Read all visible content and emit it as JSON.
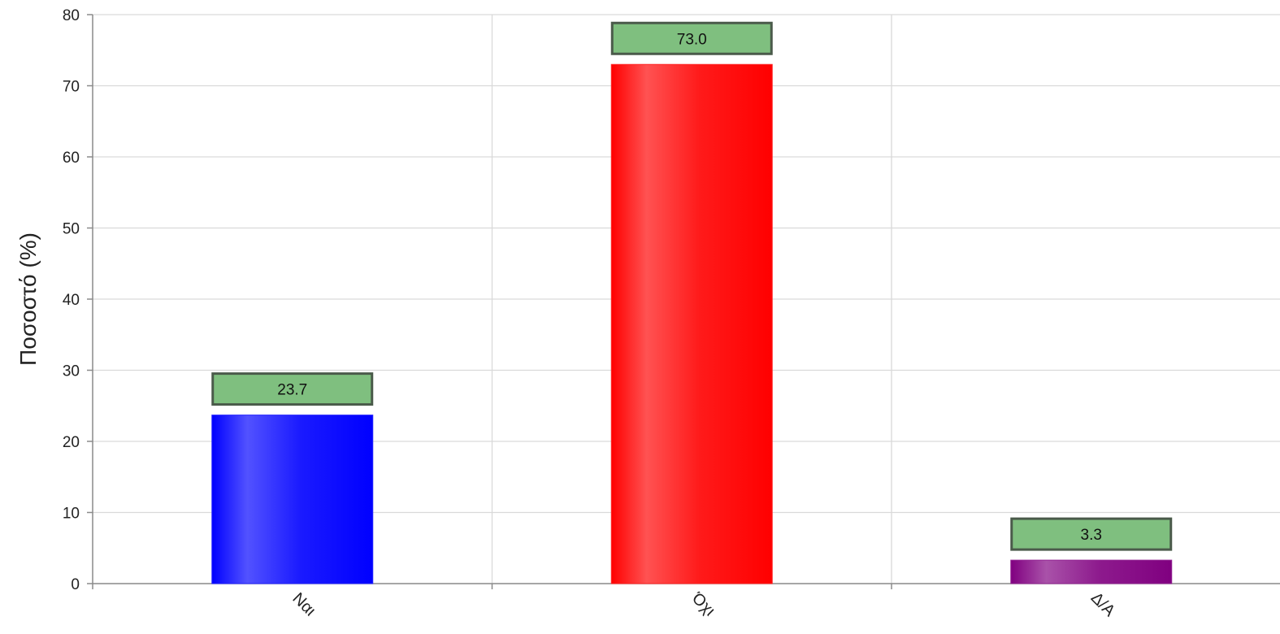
{
  "chart_data": {
    "type": "bar",
    "categories": [
      "Ναι",
      "Όχι",
      "Δ/Α"
    ],
    "values": [
      23.7,
      73.0,
      3.3
    ],
    "data_labels": [
      "23.7",
      "73.0",
      "3.3"
    ],
    "colors": [
      "#0000ff",
      "#ff0000",
      "#800080"
    ],
    "title": "",
    "xlabel": "",
    "ylabel": "Ποσοστό (%)",
    "ylim": [
      0,
      80
    ],
    "yticks": [
      0,
      10,
      20,
      30,
      40,
      50,
      60,
      70,
      80
    ],
    "grid": true,
    "legend": "none",
    "label_box_color": "#7fbf7f"
  }
}
